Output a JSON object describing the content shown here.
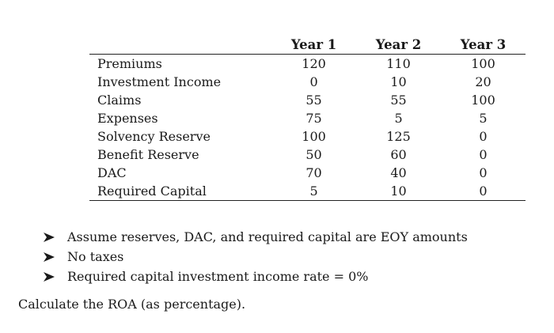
{
  "table": {
    "columns": [
      "Year 1",
      "Year 2",
      "Year 3"
    ],
    "rows": [
      {
        "label": "Premiums",
        "values": [
          "120",
          "110",
          "100"
        ]
      },
      {
        "label": "Investment Income",
        "values": [
          "0",
          "10",
          "20"
        ]
      },
      {
        "label": "Claims",
        "values": [
          "55",
          "55",
          "100"
        ]
      },
      {
        "label": "Expenses",
        "values": [
          "75",
          "5",
          "5"
        ]
      },
      {
        "label": "Solvency Reserve",
        "values": [
          "100",
          "125",
          "0"
        ]
      },
      {
        "label": "Benefit Reserve",
        "values": [
          "50",
          "60",
          "0"
        ]
      },
      {
        "label": "DAC",
        "values": [
          "70",
          "40",
          "0"
        ]
      },
      {
        "label": "Required Capital",
        "values": [
          "5",
          "10",
          "0"
        ]
      }
    ]
  },
  "bullets": [
    "Assume reserves, DAC, and required capital are EOY amounts",
    "No taxes",
    "Required capital investment income rate = 0%"
  ],
  "question": "Calculate the ROA (as percentage).",
  "icons": {
    "bullet": "arrowhead-bullet-icon"
  }
}
